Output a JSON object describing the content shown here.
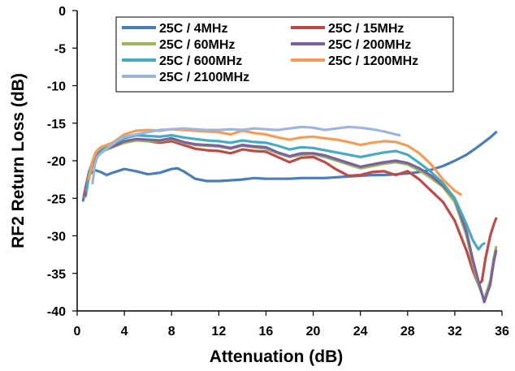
{
  "chart_data": {
    "type": "line",
    "title": "",
    "xlabel": "Attenuation (dB)",
    "ylabel": "RF2 Return Loss (dB)",
    "xlim": [
      0,
      36
    ],
    "ylim": [
      -40,
      0
    ],
    "xticks": [
      "0",
      "4",
      "8",
      "12",
      "16",
      "20",
      "24",
      "28",
      "32",
      "36"
    ],
    "yticks": [
      "0",
      "-5",
      "-10",
      "-15",
      "-20",
      "-25",
      "-30",
      "-35",
      "-40"
    ],
    "grid": "none",
    "legend_position": "top-center inside plot",
    "series": [
      {
        "name": "25C /  4MHz",
        "color": "#4a7ebb",
        "x": [
          0.5,
          0.8,
          1.0,
          1.3,
          1.6,
          2.0,
          2.5,
          3.0,
          4.0,
          5.0,
          6.0,
          7.0,
          8.0,
          8.5,
          9.0,
          10.0,
          11.0,
          12.0,
          13.0,
          14.0,
          15.0,
          16.0,
          17.0,
          18.0,
          19.0,
          20.0,
          21.0,
          22.0,
          23.0,
          24.0,
          25.0,
          26.0,
          27.0,
          28.0,
          29.0,
          30.0,
          31.0,
          32.0,
          33.0,
          34.0,
          35.0,
          35.5
        ],
        "values": [
          -25.3,
          -23.0,
          -22.0,
          -21.4,
          -21.3,
          -21.5,
          -21.9,
          -21.6,
          -21.1,
          -21.4,
          -21.8,
          -21.6,
          -21.1,
          -21.0,
          -21.4,
          -22.4,
          -22.7,
          -22.7,
          -22.6,
          -22.5,
          -22.3,
          -22.4,
          -22.4,
          -22.4,
          -22.3,
          -22.3,
          -22.3,
          -22.2,
          -22.1,
          -22.0,
          -21.9,
          -21.9,
          -21.8,
          -21.7,
          -21.5,
          -21.2,
          -20.7,
          -20.0,
          -19.2,
          -18.1,
          -16.9,
          -16.2
        ]
      },
      {
        "name": "25C /  15MHz",
        "color": "#be4b48",
        "x": [
          0.6,
          1.0,
          1.5,
          2.0,
          2.5,
          3.0,
          4.0,
          5.0,
          6.0,
          7.0,
          8.0,
          9.0,
          10.0,
          11.0,
          12.0,
          13.0,
          14.0,
          15.0,
          16.0,
          17.0,
          18.0,
          19.0,
          20.0,
          21.0,
          22.0,
          23.0,
          24.0,
          25.0,
          26.0,
          27.0,
          28.0,
          29.0,
          30.0,
          31.0,
          32.0,
          33.0,
          33.5,
          34.0,
          34.3,
          34.6,
          35.0,
          35.3,
          35.5
        ],
        "values": [
          -24.5,
          -21.5,
          -19.6,
          -18.8,
          -18.5,
          -18.2,
          -17.6,
          -17.2,
          -17.4,
          -17.6,
          -17.4,
          -17.9,
          -18.4,
          -18.6,
          -18.7,
          -19.0,
          -18.5,
          -18.7,
          -18.8,
          -19.5,
          -20.2,
          -19.6,
          -19.5,
          -20.2,
          -21.2,
          -22.0,
          -21.9,
          -21.5,
          -21.4,
          -21.9,
          -21.4,
          -22.5,
          -24.0,
          -25.5,
          -28.0,
          -32.0,
          -34.5,
          -36.5,
          -36.0,
          -33.0,
          -30.0,
          -28.5,
          -27.7
        ]
      },
      {
        "name": "25C /  60MHz",
        "color": "#98b954",
        "x": [
          0.7,
          1.0,
          1.5,
          2.0,
          2.5,
          3.0,
          4.0,
          5.0,
          6.0,
          7.0,
          8.0,
          9.0,
          10.0,
          11.0,
          12.0,
          13.0,
          14.0,
          15.0,
          16.0,
          17.0,
          18.0,
          19.0,
          20.0,
          21.0,
          22.0,
          23.0,
          24.0,
          25.0,
          26.0,
          27.0,
          28.0,
          29.0,
          30.0,
          31.0,
          32.0,
          33.0,
          33.5,
          34.0,
          34.5,
          35.0,
          35.3,
          35.5
        ],
        "values": [
          -24.8,
          -22.0,
          -19.8,
          -18.9,
          -18.5,
          -18.2,
          -17.6,
          -17.3,
          -17.4,
          -17.4,
          -17.1,
          -17.6,
          -17.9,
          -18.0,
          -18.1,
          -18.4,
          -18.0,
          -18.2,
          -18.4,
          -19.0,
          -19.5,
          -19.2,
          -19.1,
          -19.5,
          -20.0,
          -20.5,
          -21.0,
          -20.7,
          -20.4,
          -20.2,
          -20.5,
          -21.3,
          -22.3,
          -23.5,
          -25.5,
          -30.0,
          -33.5,
          -36.5,
          -38.5,
          -36.0,
          -33.0,
          -31.5
        ]
      },
      {
        "name": "25C /  200MHz",
        "color": "#7d60a0",
        "x": [
          0.7,
          1.0,
          1.5,
          2.0,
          2.5,
          3.0,
          4.0,
          5.0,
          6.0,
          7.0,
          8.0,
          9.0,
          10.0,
          11.0,
          12.0,
          13.0,
          14.0,
          15.0,
          16.0,
          17.0,
          18.0,
          19.0,
          20.0,
          21.0,
          22.0,
          23.0,
          24.0,
          25.0,
          26.0,
          27.0,
          28.0,
          29.0,
          30.0,
          31.0,
          32.0,
          33.0,
          33.5,
          34.0,
          34.5,
          35.0,
          35.3,
          35.5
        ],
        "values": [
          -24.6,
          -21.8,
          -19.6,
          -18.8,
          -18.4,
          -18.1,
          -17.4,
          -17.1,
          -17.2,
          -17.3,
          -17.0,
          -17.5,
          -17.8,
          -17.9,
          -18.0,
          -18.3,
          -17.9,
          -18.1,
          -18.2,
          -18.9,
          -19.4,
          -19.0,
          -19.0,
          -19.3,
          -19.8,
          -20.3,
          -20.8,
          -20.5,
          -20.2,
          -20.0,
          -20.3,
          -21.0,
          -22.0,
          -23.3,
          -25.0,
          -29.5,
          -33.0,
          -36.0,
          -38.8,
          -36.5,
          -33.5,
          -32.0
        ]
      },
      {
        "name": "25C /  600MHz",
        "color": "#46aac5",
        "x": [
          0.8,
          1.0,
          1.5,
          2.0,
          2.5,
          3.0,
          4.0,
          5.0,
          6.0,
          7.0,
          8.0,
          9.0,
          10.0,
          11.0,
          12.0,
          13.0,
          14.0,
          15.0,
          16.0,
          17.0,
          18.0,
          19.0,
          20.0,
          21.0,
          22.0,
          23.0,
          24.0,
          25.0,
          26.0,
          27.0,
          28.0,
          29.0,
          30.0,
          31.0,
          32.0,
          33.0,
          33.5,
          34.0,
          34.3,
          34.5
        ],
        "values": [
          -24.0,
          -21.5,
          -19.2,
          -18.5,
          -18.1,
          -17.8,
          -17.0,
          -16.6,
          -16.7,
          -16.8,
          -16.6,
          -16.9,
          -17.1,
          -17.3,
          -17.4,
          -17.6,
          -17.3,
          -17.5,
          -17.6,
          -18.0,
          -18.5,
          -18.2,
          -18.3,
          -18.6,
          -18.9,
          -19.2,
          -19.5,
          -19.2,
          -18.9,
          -18.7,
          -19.2,
          -20.3,
          -21.5,
          -23.0,
          -25.0,
          -28.5,
          -30.5,
          -31.8,
          -31.2,
          -31.0
        ]
      },
      {
        "name": "25C /  1200MHz",
        "color": "#f59d56",
        "x": [
          1.0,
          1.3,
          1.6,
          2.0,
          2.5,
          3.0,
          4.0,
          5.0,
          6.0,
          7.0,
          8.0,
          9.0,
          10.0,
          11.0,
          12.0,
          13.0,
          14.0,
          15.0,
          16.0,
          17.0,
          18.0,
          19.0,
          20.0,
          21.0,
          22.0,
          23.0,
          24.0,
          25.0,
          26.0,
          27.0,
          28.0,
          29.0,
          30.0,
          31.0,
          32.0,
          32.5
        ],
        "values": [
          -22.5,
          -20.0,
          -18.8,
          -18.2,
          -17.9,
          -17.6,
          -16.5,
          -16.0,
          -15.9,
          -16.0,
          -15.8,
          -15.9,
          -16.0,
          -16.1,
          -16.2,
          -16.5,
          -16.0,
          -16.3,
          -16.5,
          -16.9,
          -17.2,
          -16.9,
          -16.8,
          -17.0,
          -17.2,
          -17.5,
          -17.9,
          -17.6,
          -17.4,
          -17.5,
          -18.0,
          -19.0,
          -20.5,
          -22.5,
          -24.0,
          -24.5
        ]
      },
      {
        "name": "25C /  2100MHz",
        "color": "#9fb6dc",
        "x": [
          1.3,
          1.5,
          1.7,
          2.0,
          2.5,
          3.0,
          3.5,
          4.0,
          5.0,
          6.0,
          7.0,
          8.0,
          9.0,
          10.0,
          11.0,
          12.0,
          13.0,
          14.0,
          15.0,
          16.0,
          17.0,
          18.0,
          19.0,
          20.0,
          21.0,
          22.0,
          23.0,
          24.0,
          25.0,
          26.0,
          27.0,
          27.3
        ],
        "values": [
          -23.0,
          -20.5,
          -19.5,
          -19.0,
          -18.4,
          -17.8,
          -17.2,
          -16.8,
          -16.5,
          -16.2,
          -15.9,
          -15.8,
          -15.7,
          -15.8,
          -15.9,
          -15.9,
          -15.8,
          -15.9,
          -15.7,
          -15.8,
          -15.9,
          -15.7,
          -15.5,
          -15.6,
          -15.9,
          -15.7,
          -15.5,
          -15.6,
          -15.8,
          -16.1,
          -16.5,
          -16.6
        ]
      }
    ]
  }
}
